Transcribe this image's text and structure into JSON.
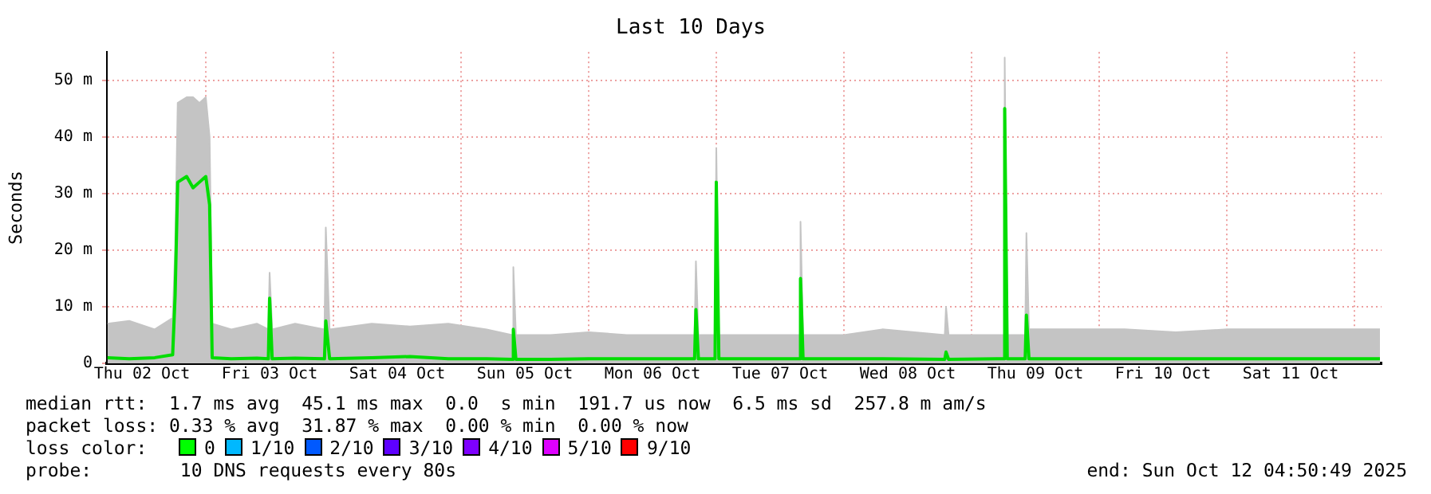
{
  "chart_data": {
    "type": "line",
    "title": "Last 10 Days",
    "ylabel": "Seconds",
    "x": [
      "2025-10-02T05:31",
      "2025-10-02T09:36",
      "2025-10-02T14:24",
      "2025-10-02T17:46",
      "2025-10-02T18:14",
      "2025-10-02T18:43",
      "2025-10-02T20:24",
      "2025-10-02T21:36",
      "2025-10-02T22:48",
      "2025-10-03T00:00",
      "2025-10-03T00:43",
      "2025-10-03T01:12",
      "2025-10-03T04:48",
      "2025-10-03T09:36",
      "2025-10-03T11:46",
      "2025-10-03T12:00",
      "2025-10-03T12:29",
      "2025-10-03T16:48",
      "2025-10-03T22:19",
      "2025-10-03T22:34",
      "2025-10-03T23:17",
      "2025-10-04T07:12",
      "2025-10-04T14:24",
      "2025-10-04T21:36",
      "2025-10-05T04:48",
      "2025-10-05T09:36",
      "2025-10-05T09:50",
      "2025-10-05T10:19",
      "2025-10-05T16:48",
      "2025-10-06T00:00",
      "2025-10-06T07:12",
      "2025-10-06T19:55",
      "2025-10-06T20:10",
      "2025-10-06T20:38",
      "2025-10-06T23:46",
      "2025-10-07T00:00",
      "2025-10-07T00:29",
      "2025-10-07T07:12",
      "2025-10-07T15:36",
      "2025-10-07T15:50",
      "2025-10-07T16:19",
      "2025-10-08T00:00",
      "2025-10-08T07:12",
      "2025-10-08T18:58",
      "2025-10-08T19:12",
      "2025-10-08T19:41",
      "2025-10-09T04:48",
      "2025-10-09T06:00",
      "2025-10-09T06:14",
      "2025-10-09T06:43",
      "2025-10-09T10:05",
      "2025-10-09T10:19",
      "2025-10-09T10:48",
      "2025-10-09T19:12",
      "2025-10-10T04:48",
      "2025-10-10T14:24",
      "2025-10-11T00:00",
      "2025-10-11T09:36",
      "2025-10-11T19:12",
      "2025-10-12T04:48"
    ],
    "series": [
      {
        "type": "area",
        "color": "#c4c4c4",
        "values": [
          7,
          7.5,
          6,
          8,
          20,
          46,
          47,
          47,
          46,
          47,
          40,
          7,
          6,
          7,
          6,
          16,
          6,
          7,
          6,
          24,
          6,
          7,
          6.5,
          7,
          6,
          5,
          17,
          5,
          5,
          5.5,
          5,
          5,
          18,
          5,
          5,
          38,
          5,
          5,
          5,
          25,
          5,
          5,
          6,
          5,
          10,
          5,
          5,
          5,
          54,
          5,
          5,
          23,
          6,
          6,
          6,
          5.5,
          6,
          6,
          6,
          6
        ]
      },
      {
        "color": "#00dd00",
        "values": [
          1,
          0.8,
          1,
          1.5,
          12,
          32,
          33,
          31,
          32,
          33,
          28,
          1,
          0.8,
          0.9,
          0.8,
          11.5,
          0.8,
          0.9,
          0.8,
          7.5,
          0.8,
          1,
          1.2,
          0.8,
          0.8,
          0.7,
          6,
          0.7,
          0.7,
          0.8,
          0.8,
          0.8,
          9.5,
          0.8,
          0.8,
          32,
          0.8,
          0.8,
          0.8,
          15,
          0.8,
          0.8,
          0.8,
          0.7,
          2,
          0.7,
          0.8,
          0.8,
          45,
          0.8,
          0.8,
          8.5,
          0.8,
          0.8,
          0.8,
          0.8,
          0.8,
          0.8,
          0.8,
          0.8
        ]
      }
    ],
    "xlim": [
      "2025-10-02T05:24",
      "2025-10-12T05:06"
    ],
    "xticks": [
      {
        "value": "2025-10-02T12:00",
        "label": "Thu 02 Oct"
      },
      {
        "value": "2025-10-03T00:00",
        "label": null
      },
      {
        "value": "2025-10-03T12:00",
        "label": "Fri 03 Oct"
      },
      {
        "value": "2025-10-04T00:00",
        "label": null
      },
      {
        "value": "2025-10-04T12:00",
        "label": "Sat 04 Oct"
      },
      {
        "value": "2025-10-05T00:00",
        "label": null
      },
      {
        "value": "2025-10-05T12:00",
        "label": "Sun 05 Oct"
      },
      {
        "value": "2025-10-06T00:00",
        "label": null
      },
      {
        "value": "2025-10-06T12:00",
        "label": "Mon 06 Oct"
      },
      {
        "value": "2025-10-07T00:00",
        "label": null
      },
      {
        "value": "2025-10-07T12:00",
        "label": "Tue 07 Oct"
      },
      {
        "value": "2025-10-08T00:00",
        "label": null
      },
      {
        "value": "2025-10-08T12:00",
        "label": "Wed 08 Oct"
      },
      {
        "value": "2025-10-09T00:00",
        "label": null
      },
      {
        "value": "2025-10-09T12:00",
        "label": "Thu 09 Oct"
      },
      {
        "value": "2025-10-10T00:00",
        "label": null
      },
      {
        "value": "2025-10-10T12:00",
        "label": "Fri 10 Oct"
      },
      {
        "value": "2025-10-11T00:00",
        "label": null
      },
      {
        "value": "2025-10-11T12:00",
        "label": "Sat 11 Oct"
      },
      {
        "value": "2025-10-12T00:00",
        "label": null
      }
    ],
    "ylim": [
      0,
      55
    ],
    "yticks": [
      0,
      {
        "value": 10,
        "label": "10 m"
      },
      {
        "value": 20,
        "label": "20 m"
      },
      {
        "value": 30,
        "label": "30 m"
      },
      {
        "value": 40,
        "label": "40 m"
      },
      {
        "value": 50,
        "label": "50 m"
      }
    ],
    "grid": true,
    "legend": false,
    "marker": "none",
    "line_style": "solid",
    "annotations": [
      "median rtt:  1.7 ms avg  45.1 ms max  0.0  s min  191.7 us now  6.5 ms sd  257.8 m am/s",
      "packet loss: 0.33 % avg  31.87 % max  0.00 % min  0.00 % now",
      "loss color:",
      "0",
      "1/10",
      "2/10",
      "3/10",
      "4/10",
      "5/10",
      "9/10",
      "probe:        10 DNS requests every 80s",
      "end: Sun Oct 12 04:50:49 2025"
    ]
  }
}
